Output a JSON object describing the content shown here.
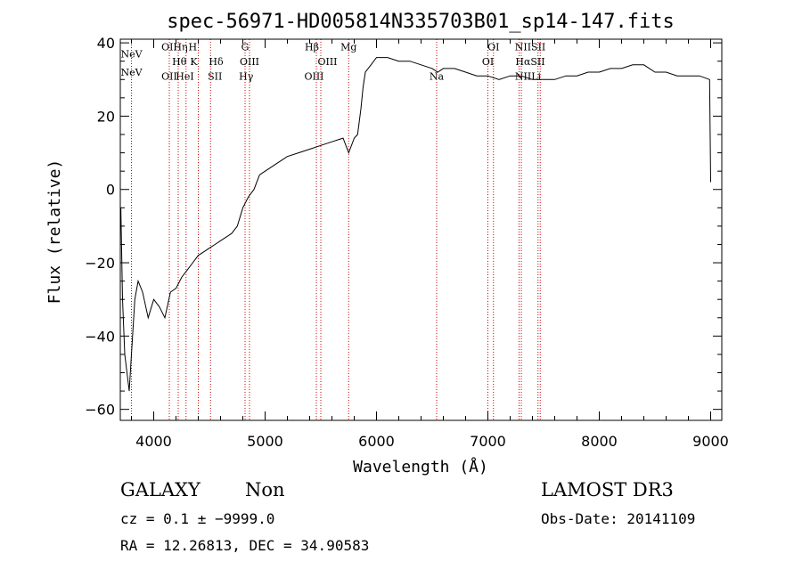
{
  "chart_data": {
    "type": "line",
    "title": "spec-56971-HD005814N335703B01_sp14-147.fits",
    "xlabel": "Wavelength (Å)",
    "ylabel": "Flux (relative)",
    "xlim": [
      3700,
      9100
    ],
    "ylim": [
      -63,
      41
    ],
    "xticks": [
      4000,
      5000,
      6000,
      7000,
      8000,
      9000
    ],
    "yticks": [
      -60,
      -40,
      -20,
      0,
      20,
      40
    ],
    "tick_labels_x": [
      "4000",
      "5000",
      "6000",
      "7000",
      "8000",
      "9000"
    ],
    "tick_labels_y": [
      "−60",
      "−40",
      "−20",
      "0",
      "20",
      "40"
    ],
    "grid": false,
    "line_color": "#000000",
    "marker_color": "#cc0000",
    "series": [
      {
        "x": [
          3705,
          3720,
          3740,
          3760,
          3780,
          3800,
          3830,
          3860,
          3900,
          3950,
          4000,
          4050,
          4100,
          4150,
          4200,
          4250,
          4300,
          4350,
          4400,
          4450,
          4500,
          4550,
          4600,
          4650,
          4700,
          4750,
          4800,
          4850,
          4900,
          4950,
          5000,
          5100,
          5200,
          5300,
          5400,
          5500,
          5600,
          5700,
          5750,
          5800,
          5830,
          5860,
          5880,
          5900,
          5950,
          6000,
          6100,
          6200,
          6300,
          6400,
          6500,
          6550,
          6600,
          6700,
          6800,
          6900,
          7000,
          7100,
          7200,
          7300,
          7400,
          7500,
          7600,
          7700,
          7800,
          7900,
          8000,
          8100,
          8200,
          8300,
          8400,
          8500,
          8600,
          8700,
          8800,
          8900,
          8990,
          9000
        ],
        "y": [
          -5,
          -30,
          -45,
          -50,
          -55,
          -45,
          -30,
          -25,
          -28,
          -35,
          -30,
          -32,
          -35,
          -28,
          -27,
          -24,
          -22,
          -20,
          -18,
          -17,
          -16,
          -15,
          -14,
          -13,
          -12,
          -10,
          -5,
          -2,
          0,
          4,
          5,
          7,
          9,
          10,
          11,
          12,
          13,
          14,
          10,
          14,
          15,
          22,
          28,
          32,
          34,
          36,
          36,
          35,
          35,
          34,
          33,
          32,
          33,
          33,
          32,
          31,
          31,
          30,
          31,
          31,
          30,
          30,
          30,
          31,
          31,
          32,
          32,
          33,
          33,
          34,
          34,
          32,
          32,
          31,
          31,
          31,
          30,
          2
        ]
      }
    ],
    "line_markers": [
      {
        "wave": 3800,
        "top": "NeV",
        "bottom": "NeV"
      },
      {
        "wave": 4140,
        "top": "OII",
        "bottom": "OII"
      },
      {
        "wave": 4220,
        "top": "Hη",
        "bottom": "Hθ"
      },
      {
        "wave": 4290,
        "top": "H",
        "bottom": "HeI"
      },
      {
        "wave": 4400,
        "top": "K",
        "bottom": "HeI"
      },
      {
        "wave": 4510,
        "top": "Hδ",
        "bottom": "SII"
      },
      {
        "wave": 4820,
        "top": "G",
        "bottom": "Hγ"
      },
      {
        "wave": 4860,
        "top": "OIII",
        "bottom": "OIII"
      },
      {
        "wave": 5460,
        "top": "Hβ",
        "bottom": "OIII"
      },
      {
        "wave": 5500,
        "top": "OIII",
        "bottom": "OIII"
      },
      {
        "wave": 5750,
        "top": "Mg",
        "bottom": "Mg"
      },
      {
        "wave": 6540,
        "top": "Na",
        "bottom": "Na"
      },
      {
        "wave": 7000,
        "top": "OI",
        "bottom": "OI"
      },
      {
        "wave": 7050,
        "top": "OI",
        "bottom": "OI"
      },
      {
        "wave": 7280,
        "top": "NII",
        "bottom": "NII"
      },
      {
        "wave": 7300,
        "top": "Hα",
        "bottom": "Hα"
      },
      {
        "wave": 7450,
        "top": "SII",
        "bottom": "SII"
      },
      {
        "wave": 7470,
        "top": "SII",
        "bottom": "Li"
      }
    ],
    "marker_labels": [
      {
        "text": "NeV",
        "wave": 3800,
        "flux": 36
      },
      {
        "text": "NeV",
        "wave": 3800,
        "flux": 31
      },
      {
        "text": "OII",
        "wave": 4140,
        "flux": 38
      },
      {
        "text": "Hη",
        "wave": 4240,
        "flux": 38
      },
      {
        "text": "H",
        "wave": 4350,
        "flux": 38
      },
      {
        "text": "Hθ",
        "wave": 4230,
        "flux": 34
      },
      {
        "text": "K",
        "wave": 4360,
        "flux": 34
      },
      {
        "text": "Hδ",
        "wave": 4560,
        "flux": 34
      },
      {
        "text": "OII",
        "wave": 4140,
        "flux": 30
      },
      {
        "text": "HeI",
        "wave": 4280,
        "flux": 30
      },
      {
        "text": "SII",
        "wave": 4550,
        "flux": 30
      },
      {
        "text": "G",
        "wave": 4820,
        "flux": 38
      },
      {
        "text": "OIII",
        "wave": 4860,
        "flux": 34
      },
      {
        "text": "Hγ",
        "wave": 4830,
        "flux": 30
      },
      {
        "text": "Hβ",
        "wave": 5420,
        "flux": 38
      },
      {
        "text": "Mg",
        "wave": 5750,
        "flux": 38
      },
      {
        "text": "OIII",
        "wave": 5560,
        "flux": 34
      },
      {
        "text": "OIII",
        "wave": 5440,
        "flux": 30
      },
      {
        "text": "Na",
        "wave": 6540,
        "flux": 30
      },
      {
        "text": "OI",
        "wave": 7050,
        "flux": 38
      },
      {
        "text": "OI",
        "wave": 7000,
        "flux": 34
      },
      {
        "text": "NIISII",
        "wave": 7380,
        "flux": 38
      },
      {
        "text": "HαSII",
        "wave": 7380,
        "flux": 34
      },
      {
        "text": "NIILi",
        "wave": 7360,
        "flux": 30
      }
    ]
  },
  "info": {
    "object_class": "GALAXY",
    "subclass": "Non",
    "survey": "LAMOST DR3",
    "cz_line": "cz = 0.1 ± −9999.0",
    "obs_date": "Obs-Date: 20141109",
    "coords": "RA =  12.26813, DEC =  34.90583"
  }
}
